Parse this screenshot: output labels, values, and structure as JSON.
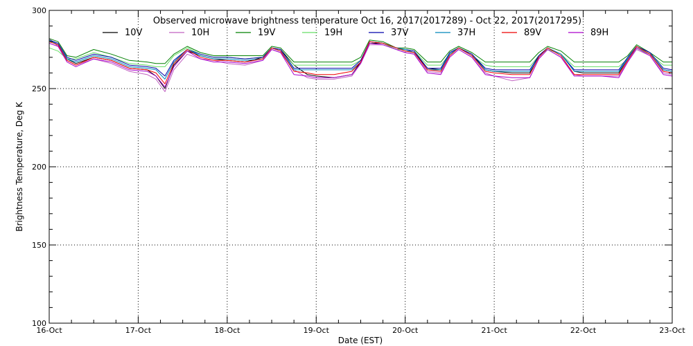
{
  "chart_data": {
    "type": "line",
    "title": "Observed microwave brightness temperature Oct 16, 2017(2017289) - Oct 22, 2017(2017295)",
    "xlabel": "Date (EST)",
    "ylabel": "Brightness Temperature, Deg K",
    "ylim": [
      100,
      300
    ],
    "xlim": [
      0,
      7
    ],
    "y_ticks": [
      100,
      150,
      200,
      250,
      300
    ],
    "x_tick_labels": [
      "16-Oct",
      "17-Oct",
      "18-Oct",
      "19-Oct",
      "20-Oct",
      "21-Oct",
      "22-Oct",
      "23-Oct"
    ],
    "grid": true,
    "legend_position": "top",
    "x_units": "days since 16-Oct",
    "series": [
      {
        "name": "10V",
        "color": "#000000"
      },
      {
        "name": "10H",
        "color": "#c060c0"
      },
      {
        "name": "19V",
        "color": "#008000"
      },
      {
        "name": "19H",
        "color": "#66dd66"
      },
      {
        "name": "37V",
        "color": "#0000aa"
      },
      {
        "name": "37H",
        "color": "#0088bb"
      },
      {
        "name": "89V",
        "color": "#ee0000"
      },
      {
        "name": "89H",
        "color": "#aa00cc"
      }
    ],
    "x": [
      0.0,
      0.1,
      0.2,
      0.3,
      0.5,
      0.7,
      0.9,
      1.1,
      1.2,
      1.3,
      1.4,
      1.55,
      1.7,
      1.85,
      2.0,
      2.2,
      2.4,
      2.5,
      2.6,
      2.75,
      2.9,
      3.0,
      3.2,
      3.4,
      3.5,
      3.6,
      3.75,
      3.9,
      4.0,
      4.1,
      4.25,
      4.4,
      4.5,
      4.6,
      4.75,
      4.9,
      5.0,
      5.2,
      5.4,
      5.5,
      5.6,
      5.75,
      5.9,
      6.0,
      6.2,
      6.4,
      6.5,
      6.6,
      6.75,
      6.9,
      7.0
    ],
    "series_values": {
      "10V": [
        281,
        278,
        269,
        266,
        270,
        268,
        263,
        262,
        258,
        250,
        265,
        274,
        271,
        269,
        268,
        267,
        270,
        276,
        275,
        265,
        259,
        258,
        257,
        259,
        267,
        279,
        279,
        276,
        274,
        273,
        263,
        262,
        272,
        276,
        272,
        262,
        261,
        260,
        260,
        271,
        276,
        272,
        261,
        260,
        260,
        260,
        269,
        276,
        272,
        262,
        261
      ],
      "10H": [
        282,
        277,
        268,
        265,
        269,
        266,
        261,
        259,
        256,
        248,
        262,
        272,
        269,
        268,
        266,
        265,
        268,
        275,
        273,
        262,
        257,
        256,
        256,
        258,
        266,
        278,
        278,
        275,
        273,
        272,
        261,
        260,
        270,
        275,
        270,
        260,
        258,
        255,
        257,
        269,
        275,
        270,
        259,
        258,
        258,
        258,
        267,
        275,
        271,
        260,
        259
      ],
      "19V": [
        282,
        280,
        271,
        270,
        275,
        272,
        268,
        267,
        266,
        266,
        272,
        277,
        273,
        271,
        271,
        271,
        271,
        277,
        276,
        267,
        267,
        267,
        267,
        267,
        270,
        281,
        280,
        276,
        276,
        275,
        267,
        267,
        274,
        277,
        273,
        267,
        267,
        267,
        267,
        273,
        277,
        274,
        267,
        267,
        267,
        267,
        271,
        278,
        273,
        267,
        267
      ],
      "19H": [
        276,
        274,
        269,
        269,
        273,
        270,
        266,
        265,
        264,
        264,
        271,
        276,
        272,
        270,
        270,
        269,
        270,
        276,
        274,
        265,
        265,
        265,
        265,
        265,
        268,
        280,
        279,
        275,
        275,
        274,
        265,
        265,
        272,
        276,
        271,
        265,
        264,
        264,
        264,
        271,
        275,
        272,
        264,
        264,
        264,
        264,
        269,
        276,
        272,
        265,
        265
      ],
      "37V": [
        281,
        279,
        270,
        268,
        272,
        270,
        265,
        264,
        263,
        258,
        268,
        275,
        272,
        270,
        270,
        269,
        270,
        276,
        275,
        263,
        263,
        263,
        263,
        263,
        268,
        280,
        279,
        276,
        275,
        274,
        263,
        263,
        273,
        276,
        272,
        263,
        262,
        262,
        262,
        271,
        276,
        272,
        262,
        262,
        262,
        262,
        270,
        277,
        273,
        263,
        262
      ],
      "37H": [
        281,
        278,
        269,
        267,
        271,
        269,
        264,
        263,
        262,
        256,
        267,
        275,
        271,
        269,
        269,
        268,
        269,
        276,
        274,
        262,
        262,
        262,
        262,
        262,
        267,
        280,
        279,
        276,
        275,
        273,
        262,
        262,
        272,
        276,
        271,
        262,
        261,
        261,
        261,
        270,
        276,
        272,
        261,
        261,
        261,
        261,
        269,
        277,
        272,
        262,
        261
      ],
      "89V": [
        280,
        278,
        268,
        265,
        270,
        268,
        263,
        262,
        260,
        253,
        266,
        275,
        270,
        268,
        268,
        267,
        269,
        276,
        274,
        261,
        260,
        259,
        259,
        261,
        267,
        280,
        279,
        276,
        274,
        273,
        262,
        261,
        271,
        276,
        271,
        261,
        260,
        259,
        259,
        270,
        276,
        271,
        259,
        259,
        259,
        259,
        268,
        277,
        272,
        261,
        260
      ],
      "89H": [
        279,
        277,
        267,
        264,
        269,
        267,
        262,
        261,
        258,
        251,
        264,
        274,
        269,
        267,
        267,
        266,
        268,
        275,
        273,
        259,
        258,
        257,
        257,
        259,
        266,
        279,
        278,
        275,
        273,
        272,
        260,
        259,
        270,
        275,
        270,
        259,
        258,
        257,
        257,
        269,
        275,
        270,
        258,
        258,
        258,
        257,
        267,
        276,
        271,
        259,
        258
      ]
    }
  }
}
